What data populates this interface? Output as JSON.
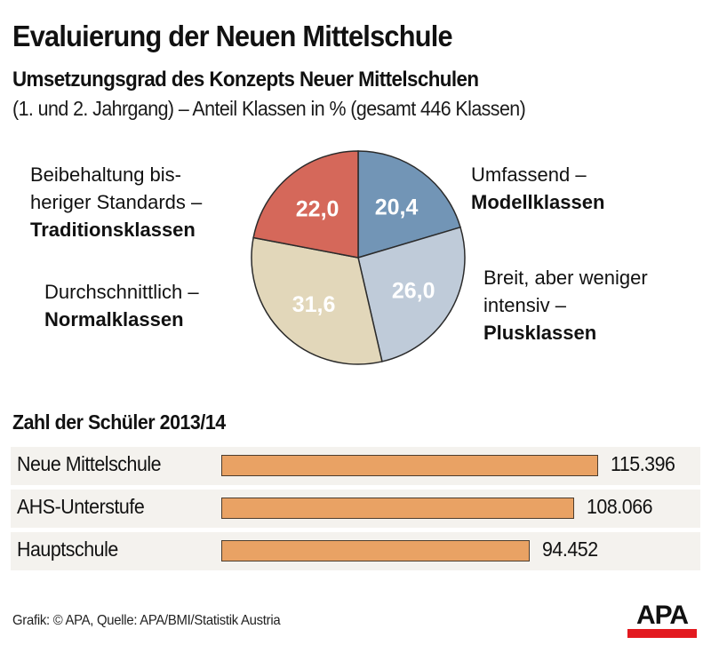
{
  "header": {
    "title": "Evaluierung der Neuen Mittelschule",
    "subtitle": "Umsetzungsgrad des Konzepts Neuer Mittelschulen",
    "subtitle2": "(1. und 2. Jahrgang) – Anteil Klassen in % (gesamt 446 Klassen)"
  },
  "pie_labels": {
    "traditions": {
      "line1": "Beibehaltung bis-",
      "line2": "heriger Standards –",
      "bold": "Traditionsklassen"
    },
    "normal": {
      "line1": "Durchschnittlich –",
      "bold": "Normalklassen"
    },
    "modell": {
      "line1": "Umfassend –",
      "bold": "Modellklassen"
    },
    "plus": {
      "line1": "Breit, aber weniger",
      "line2": "intensiv –",
      "bold": "Plusklassen"
    }
  },
  "bar_section": {
    "title": "Zahl der Schüler 2013/14"
  },
  "footer": {
    "credit": "Grafik: © APA, Quelle: APA/BMI/Statistik Austria",
    "logo": "APA"
  },
  "colors": {
    "modell": "#7295b6",
    "plus": "#bfcbd9",
    "normal": "#e2d7ba",
    "traditions": "#d5685a",
    "bar": "#e9a264",
    "logo_red": "#e3191f"
  },
  "chart_data": [
    {
      "type": "pie",
      "title": "Umsetzungsgrad des Konzepts Neuer Mittelschulen",
      "unit": "%",
      "start": "12 o'clock, clockwise",
      "slices": [
        {
          "name": "Modellklassen",
          "value": 20.4,
          "label": "20,4",
          "color": "#7295b6"
        },
        {
          "name": "Plusklassen",
          "value": 26.0,
          "label": "26,0",
          "color": "#bfcbd9"
        },
        {
          "name": "Normalklassen",
          "value": 31.6,
          "label": "31,6",
          "color": "#e2d7ba"
        },
        {
          "name": "Traditionsklassen",
          "value": 22.0,
          "label": "22,0",
          "color": "#d5685a"
        }
      ]
    },
    {
      "type": "bar",
      "orientation": "horizontal",
      "title": "Zahl der Schüler 2013/14",
      "categories": [
        "Neue Mittelschule",
        "AHS-Unterstufe",
        "Hauptschule"
      ],
      "values": [
        115396,
        108066,
        94452
      ],
      "value_labels": [
        "115.396",
        "108.066",
        "94.452"
      ]
    }
  ]
}
